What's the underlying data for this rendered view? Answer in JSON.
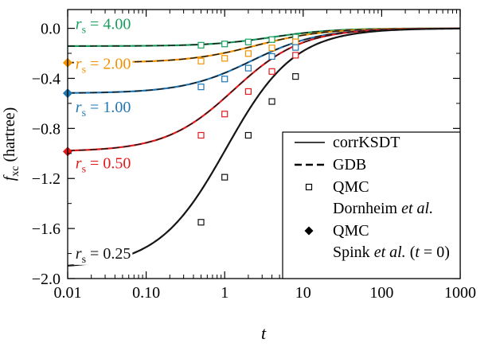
{
  "chart_data": {
    "type": "line",
    "xlabel": "t",
    "ylabel": {
      "main": "f",
      "sub": "xc",
      "unit": "(hartree)"
    },
    "xscale": "log",
    "xlim": [
      0.01,
      1000
    ],
    "ylim": [
      -2.0,
      0.15
    ],
    "x_ticks": [
      {
        "value": 0.01,
        "label": "0.01"
      },
      {
        "value": 0.1,
        "label": "0.10"
      },
      {
        "value": 1,
        "label": "1"
      },
      {
        "value": 10,
        "label": "10"
      },
      {
        "value": 100,
        "label": "100"
      },
      {
        "value": 1000,
        "label": "1000"
      }
    ],
    "y_ticks": [
      {
        "value": 0.0,
        "label": "0.0"
      },
      {
        "value": -0.4,
        "label": "−0.4"
      },
      {
        "value": -0.8,
        "label": "−0.8"
      },
      {
        "value": -1.2,
        "label": "−1.2"
      },
      {
        "value": -1.6,
        "label": "−1.6"
      },
      {
        "value": -2.0,
        "label": "−2.0"
      }
    ],
    "grid": false,
    "legend_placement": "bottom-right",
    "legend": [
      {
        "marker": "solid-line",
        "label": "corrKSDT"
      },
      {
        "marker": "dashed-line",
        "label": "GDB"
      },
      {
        "marker": "open-square",
        "label": "QMC",
        "label2": "Dornheim et al."
      },
      {
        "marker": "filled-diamond",
        "label": "QMC",
        "label2": "Spink et al. (t = 0)"
      }
    ],
    "series": [
      {
        "rs_label": "r_s = 4.00",
        "rs": "4.00",
        "color": "#1a9e5f",
        "f0": -0.142,
        "t_mid": 4.0,
        "width": 1.1,
        "label_t": 0.012,
        "label_f": -0.005,
        "qmc": [
          {
            "t": 0.5,
            "f": -0.135
          },
          {
            "t": 1.0,
            "f": -0.125
          },
          {
            "t": 2.0,
            "f": -0.109
          },
          {
            "t": 4.0,
            "f": -0.09
          },
          {
            "t": 8.0,
            "f": -0.07
          }
        ],
        "t0": null
      },
      {
        "rs_label": "r_s = 2.00",
        "rs": "2.00",
        "color": "#f39200",
        "f0": -0.275,
        "t_mid": 2.5,
        "width": 1.0,
        "label_t": 0.012,
        "label_f": -0.325,
        "qmc": [
          {
            "t": 0.5,
            "f": -0.262
          },
          {
            "t": 1.0,
            "f": -0.24
          },
          {
            "t": 2.0,
            "f": -0.202
          },
          {
            "t": 4.0,
            "f": -0.157
          },
          {
            "t": 8.0,
            "f": -0.108
          }
        ],
        "t0": -0.275
      },
      {
        "rs_label": "r_s = 1.00",
        "rs": "1.00",
        "color": "#1f77b4",
        "f0": -0.519,
        "t_mid": 2.2,
        "width": 1.0,
        "label_t": 0.012,
        "label_f": -0.67,
        "qmc": [
          {
            "t": 0.5,
            "f": -0.468
          },
          {
            "t": 1.0,
            "f": -0.405
          },
          {
            "t": 2.0,
            "f": -0.318
          },
          {
            "t": 4.0,
            "f": -0.225
          },
          {
            "t": 8.0,
            "f": -0.153
          }
        ],
        "t0": -0.519
      },
      {
        "rs_label": "r_s = 0.50",
        "rs": "0.50",
        "color": "#e31a1c",
        "f0": -0.985,
        "t_mid": 1.3,
        "width": 1.0,
        "label_t": 0.012,
        "label_f": -1.12,
        "qmc": [
          {
            "t": 0.5,
            "f": -0.855
          },
          {
            "t": 1.0,
            "f": -0.685
          },
          {
            "t": 2.0,
            "f": -0.505
          },
          {
            "t": 4.0,
            "f": -0.345
          },
          {
            "t": 8.0,
            "f": -0.215
          }
        ],
        "t0": -0.985
      },
      {
        "rs_label": "r_s = 0.25",
        "rs": "0.25",
        "color": "#111111",
        "f0": -1.915,
        "t_mid": 1.05,
        "width": 1.0,
        "label_t": 0.012,
        "label_f": -1.84,
        "qmc": [
          {
            "t": 0.5,
            "f": -1.55
          },
          {
            "t": 1.0,
            "f": -1.19
          },
          {
            "t": 2.0,
            "f": -0.855
          },
          {
            "t": 4.0,
            "f": -0.585
          },
          {
            "t": 8.0,
            "f": -0.385
          }
        ],
        "t0": null
      }
    ]
  }
}
